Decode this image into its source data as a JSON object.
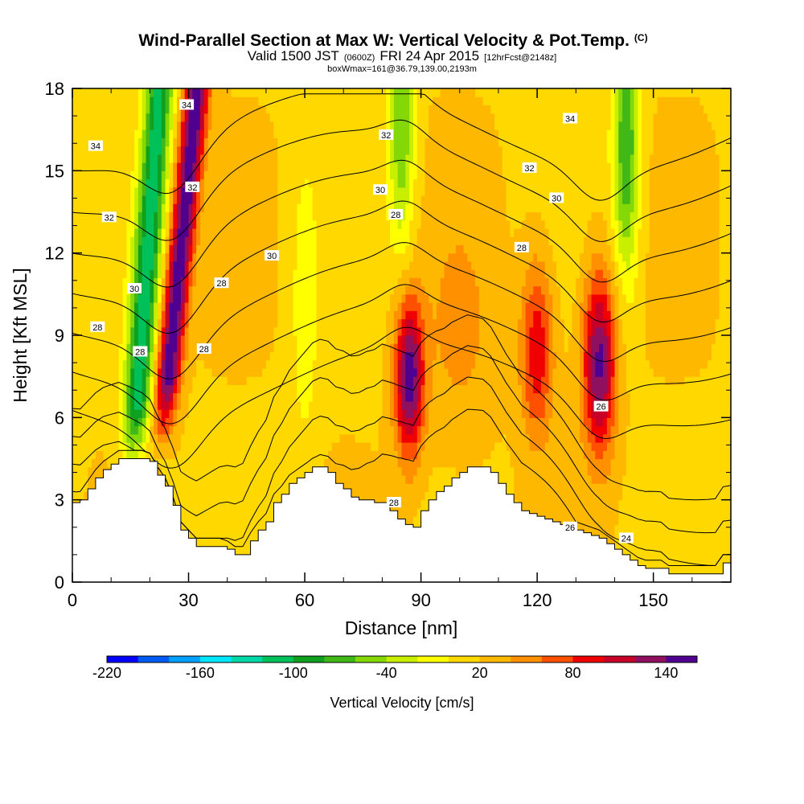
{
  "chart_data": {
    "type": "heatmap",
    "title": "Wind-Parallel Section at Max W: Vertical Velocity & Pot.Temp.",
    "title_mark": "(C)",
    "subtitle": {
      "valid": "Valid 1500 JST",
      "utc": "(0600Z)",
      "date": "FRI 24 Apr 2015",
      "forecast": "[12hrFcst@2148z]"
    },
    "info": "boxWmax=161@36.79,139.00,2193m",
    "xlabel": "Distance [nm]",
    "ylabel": "Height [Kft MSL]",
    "xlim": [
      0,
      170
    ],
    "ylim": [
      0,
      18
    ],
    "x_ticks": [
      0,
      30,
      60,
      90,
      120,
      150
    ],
    "y_ticks": [
      0,
      3,
      6,
      9,
      12,
      15,
      18
    ],
    "colorbar": {
      "title": "Vertical Velocity [cm/s]",
      "min": -220,
      "step": 20,
      "labels": [
        -220,
        -160,
        -100,
        -40,
        20,
        80,
        140
      ],
      "colors": [
        "#0000ff",
        "#005af5",
        "#00a0ff",
        "#00e6ff",
        "#00d8a8",
        "#00c05a",
        "#10a020",
        "#40b818",
        "#84d808",
        "#c8ee00",
        "#ffff00",
        "#ffd800",
        "#ffb800",
        "#ff9000",
        "#ff5000",
        "#f00000",
        "#c80028",
        "#901060",
        "#500090"
      ]
    },
    "updrafts": [
      {
        "x": 27,
        "z0": 9,
        "x_top": 31,
        "peak": 160
      },
      {
        "x": 87,
        "z0": 7.5,
        "peak": 160
      },
      {
        "x": 120,
        "z0": 8.5,
        "peak": 100
      },
      {
        "x": 136,
        "z0": 8,
        "peak": 150
      }
    ],
    "downdrafts": [
      {
        "x": 19,
        "z0": 8,
        "peak": -110
      },
      {
        "x": 85,
        "z0": 17,
        "peak": -60
      },
      {
        "x": 143,
        "z0": 16,
        "peak": -80
      }
    ],
    "terrain": {
      "x": [
        0,
        2,
        4,
        6,
        8,
        10,
        12,
        14,
        16,
        18,
        20,
        22,
        24,
        26,
        28,
        30,
        32,
        34,
        36,
        38,
        40,
        42,
        44,
        46,
        48,
        50,
        52,
        54,
        56,
        58,
        60,
        62,
        64,
        66,
        68,
        70,
        72,
        74,
        76,
        78,
        80,
        82,
        84,
        86,
        88,
        90,
        92,
        94,
        96,
        98,
        100,
        102,
        104,
        106,
        108,
        110,
        112,
        114,
        116,
        118,
        120,
        122,
        124,
        126,
        128,
        130,
        132,
        134,
        136,
        138,
        140,
        142,
        144,
        146,
        148,
        150,
        152,
        154,
        156,
        158,
        160,
        162,
        164,
        166,
        168,
        170
      ],
      "z": [
        2.9,
        3.0,
        3.4,
        3.8,
        4.1,
        4.3,
        4.5,
        4.5,
        4.5,
        4.5,
        4.4,
        3.9,
        3.5,
        2.8,
        1.9,
        1.6,
        1.3,
        1.3,
        1.3,
        1.3,
        1.2,
        1.0,
        1.0,
        1.5,
        1.9,
        2.2,
        2.9,
        3.2,
        3.6,
        3.8,
        4.0,
        4.2,
        4.2,
        4.0,
        3.6,
        3.4,
        3.1,
        3.0,
        3.0,
        2.9,
        2.9,
        2.6,
        2.3,
        2.1,
        2.0,
        2.6,
        3.0,
        3.3,
        3.5,
        3.8,
        4.0,
        4.2,
        4.2,
        4.2,
        4.0,
        3.6,
        3.2,
        2.9,
        2.6,
        2.5,
        2.4,
        2.3,
        2.2,
        2.1,
        2.0,
        1.9,
        1.8,
        1.7,
        1.6,
        1.4,
        1.2,
        1.0,
        0.8,
        0.6,
        0.5,
        0.5,
        0.5,
        0.3,
        0.3,
        0.3,
        0.3,
        0.3,
        0.3,
        0.3,
        0.7,
        0.7
      ]
    },
    "contours": {
      "levels": [
        24,
        25,
        26,
        27,
        28,
        29,
        30,
        31,
        32,
        33,
        34
      ],
      "labels": [
        {
          "x": 6,
          "z": 15.9,
          "text": "34"
        },
        {
          "x": 29.5,
          "z": 17.4,
          "text": "34"
        },
        {
          "x": 128.5,
          "z": 16.9,
          "text": "34"
        },
        {
          "x": 81,
          "z": 16.3,
          "text": "32"
        },
        {
          "x": 31,
          "z": 14.4,
          "text": "32"
        },
        {
          "x": 118,
          "z": 15.1,
          "text": "32"
        },
        {
          "x": 9.5,
          "z": 13.3,
          "text": "32"
        },
        {
          "x": 79.5,
          "z": 14.3,
          "text": "30"
        },
        {
          "x": 125,
          "z": 14.0,
          "text": "30"
        },
        {
          "x": 51.5,
          "z": 11.9,
          "text": "30"
        },
        {
          "x": 16,
          "z": 10.7,
          "text": "30"
        },
        {
          "x": 83.5,
          "z": 13.4,
          "text": "28"
        },
        {
          "x": 116,
          "z": 12.2,
          "text": "28"
        },
        {
          "x": 38.5,
          "z": 10.9,
          "text": "28"
        },
        {
          "x": 6.5,
          "z": 9.3,
          "text": "28"
        },
        {
          "x": 17.5,
          "z": 8.4,
          "text": "28"
        },
        {
          "x": 34,
          "z": 8.5,
          "text": "28"
        },
        {
          "x": 83,
          "z": 2.9,
          "text": "28"
        },
        {
          "x": 136.5,
          "z": 6.4,
          "text": "26"
        },
        {
          "x": 128.5,
          "z": 2.0,
          "text": "26"
        },
        {
          "x": 143,
          "z": 1.6,
          "text": "24"
        }
      ]
    }
  }
}
